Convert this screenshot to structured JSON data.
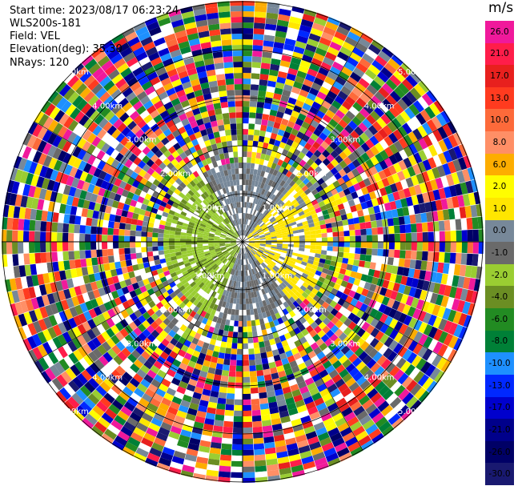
{
  "header": {
    "start_time": "Start time: 2023/08/17 06:23:24",
    "instrument": "WLS200s-181",
    "field": "Field: VEL",
    "elevation": "Elevation(deg): 35.30",
    "nrays": "NRays: 120"
  },
  "colorbar": {
    "unit": "m/s",
    "labels": [
      "26.0",
      "21.0",
      "17.0",
      "13.0",
      "10.0",
      "8.0",
      "6.0",
      "2.0",
      "1.0",
      "0.0",
      "-1.0",
      "-2.0",
      "-4.0",
      "-6.0",
      "-8.0",
      "-10.0",
      "-13.0",
      "-17.0",
      "-21.0",
      "-26.0",
      "-30.0"
    ],
    "colors": [
      "#f0199b",
      "#ff1d4a",
      "#e8201e",
      "#ff3b1f",
      "#fd6a3a",
      "#ff8f66",
      "#fdad00",
      "#fffd00",
      "#ffe600",
      "#778899",
      "#6a6a6a",
      "#9acd32",
      "#6b8e23",
      "#228b22",
      "#008037",
      "#1e90ff",
      "#0028ff",
      "#0000cd",
      "#00008b",
      "#000066",
      "#191970"
    ]
  },
  "chart_data": {
    "type": "heatmap",
    "projection": "polar PPI",
    "title": "",
    "nrays": 120,
    "elevation_deg": 35.3,
    "ring_labels": [
      "1.00km",
      "2.00km",
      "3.00km",
      "4.00km",
      "5.00km"
    ],
    "ring_label_units": "km",
    "value_range_ms": [
      -30,
      26
    ],
    "spoke_angles_deg": [
      0,
      30,
      60,
      90,
      120,
      150,
      180,
      210,
      240,
      270,
      300,
      330
    ],
    "notes": "inner region ~0-2 km shows coherent velocities (~ -2 to 2 m/s); beyond ~2 km noise across the full color range"
  }
}
